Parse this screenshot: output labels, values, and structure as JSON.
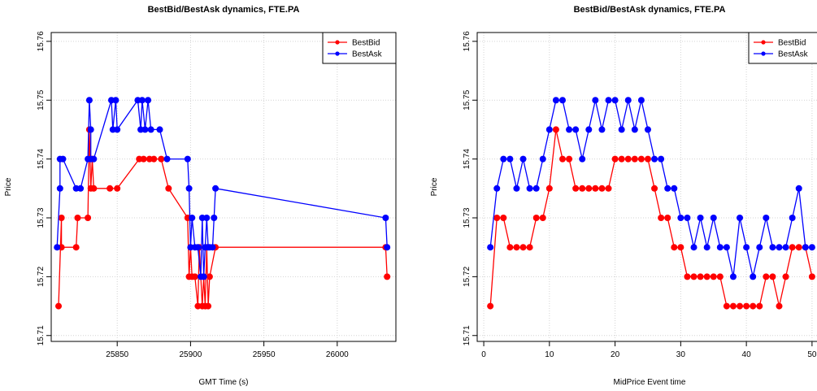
{
  "chart_data": [
    {
      "type": "line",
      "title": "BestBid/BestAsk dynamics, FTE.PA",
      "xlabel": "GMT Time (s)",
      "ylabel": "Price",
      "xlim": [
        25805,
        26040
      ],
      "ylim": [
        15.709,
        15.7615
      ],
      "xticks": [
        25850,
        25900,
        25950,
        26000
      ],
      "yticks": [
        15.71,
        15.72,
        15.73,
        15.74,
        15.75,
        15.76
      ],
      "xtick_labels": [
        "25850",
        "25900",
        "25950",
        "26000"
      ],
      "ytick_labels": [
        "15.71",
        "15.72",
        "15.73",
        "15.74",
        "15.75",
        "15.76"
      ],
      "grid": true,
      "legend_position": "top-right",
      "series": [
        {
          "name": "BestBid",
          "color": "#ff0000",
          "x": [
            25810,
            25812,
            25812,
            25822,
            25823,
            25830,
            25831,
            25832,
            25833,
            25834,
            25845,
            25850,
            25865,
            25868,
            25872,
            25875,
            25880,
            25885,
            25898,
            25899,
            25900,
            25901,
            25903,
            25905,
            25906,
            25908,
            25909,
            25910,
            25911,
            25912,
            25913,
            25917,
            26033,
            26034
          ],
          "y": [
            15.715,
            15.73,
            15.725,
            15.725,
            15.73,
            15.73,
            15.745,
            15.735,
            15.74,
            15.735,
            15.735,
            15.735,
            15.74,
            15.74,
            15.74,
            15.74,
            15.74,
            15.735,
            15.73,
            15.72,
            15.725,
            15.72,
            15.72,
            15.715,
            15.725,
            15.715,
            15.72,
            15.715,
            15.725,
            15.715,
            15.72,
            15.725,
            15.725,
            15.72
          ]
        },
        {
          "name": "BestAsk",
          "color": "#0000ff",
          "x": [
            25809,
            25811,
            25811,
            25813,
            25822,
            25825,
            25830,
            25831,
            25832,
            25832,
            25834,
            25846,
            25847,
            25849,
            25850,
            25864,
            25866,
            25867,
            25869,
            25871,
            25873,
            25879,
            25884,
            25898,
            25899,
            25900,
            25901,
            25903,
            25905,
            25907,
            25908,
            25909,
            25910,
            25911,
            25912,
            25913,
            25915,
            25916,
            25917,
            26033,
            26034
          ],
          "y": [
            15.725,
            15.735,
            15.74,
            15.74,
            15.735,
            15.735,
            15.74,
            15.75,
            15.745,
            15.74,
            15.74,
            15.75,
            15.745,
            15.75,
            15.745,
            15.75,
            15.745,
            15.75,
            15.745,
            15.75,
            15.745,
            15.745,
            15.74,
            15.74,
            15.735,
            15.725,
            15.73,
            15.725,
            15.725,
            15.72,
            15.73,
            15.72,
            15.725,
            15.73,
            15.725,
            15.725,
            15.725,
            15.73,
            15.735,
            15.73,
            15.725
          ]
        }
      ]
    },
    {
      "type": "line",
      "title": "BestBid/BestAsk dynamics, FTE.PA",
      "xlabel": "MidPrice Event time",
      "ylabel": "Price",
      "xlim": [
        -1,
        51.5
      ],
      "ylim": [
        15.709,
        15.7615
      ],
      "xticks": [
        0,
        10,
        20,
        30,
        40,
        50
      ],
      "yticks": [
        15.71,
        15.72,
        15.73,
        15.74,
        15.75,
        15.76
      ],
      "xtick_labels": [
        "0",
        "10",
        "20",
        "30",
        "40",
        "50"
      ],
      "ytick_labels": [
        "15.71",
        "15.72",
        "15.73",
        "15.74",
        "15.75",
        "15.76"
      ],
      "grid": true,
      "legend_position": "top-right",
      "series": [
        {
          "name": "BestBid",
          "color": "#ff0000",
          "x": [
            1,
            2,
            3,
            4,
            5,
            6,
            7,
            8,
            9,
            10,
            11,
            12,
            13,
            14,
            15,
            16,
            17,
            18,
            19,
            20,
            21,
            22,
            23,
            24,
            25,
            26,
            27,
            28,
            29,
            30,
            31,
            32,
            33,
            34,
            35,
            36,
            37,
            38,
            39,
            40,
            41,
            42,
            43,
            44,
            45,
            46,
            47,
            48,
            49,
            50
          ],
          "y": [
            15.715,
            15.73,
            15.73,
            15.725,
            15.725,
            15.725,
            15.725,
            15.73,
            15.73,
            15.735,
            15.745,
            15.74,
            15.74,
            15.735,
            15.735,
            15.735,
            15.735,
            15.735,
            15.735,
            15.74,
            15.74,
            15.74,
            15.74,
            15.74,
            15.74,
            15.735,
            15.73,
            15.73,
            15.725,
            15.725,
            15.72,
            15.72,
            15.72,
            15.72,
            15.72,
            15.72,
            15.715,
            15.715,
            15.715,
            15.715,
            15.715,
            15.715,
            15.72,
            15.72,
            15.715,
            15.72,
            15.725,
            15.725,
            15.725,
            15.72
          ]
        },
        {
          "name": "BestAsk",
          "color": "#0000ff",
          "x": [
            1,
            2,
            3,
            4,
            5,
            6,
            7,
            8,
            9,
            10,
            11,
            12,
            13,
            14,
            15,
            16,
            17,
            18,
            19,
            20,
            21,
            22,
            23,
            24,
            25,
            26,
            27,
            28,
            29,
            30,
            31,
            32,
            33,
            34,
            35,
            36,
            37,
            38,
            39,
            40,
            41,
            42,
            43,
            44,
            45,
            46,
            47,
            48,
            49,
            50
          ],
          "y": [
            15.725,
            15.735,
            15.74,
            15.74,
            15.735,
            15.74,
            15.735,
            15.735,
            15.74,
            15.745,
            15.75,
            15.75,
            15.745,
            15.745,
            15.74,
            15.745,
            15.75,
            15.745,
            15.75,
            15.75,
            15.745,
            15.75,
            15.745,
            15.75,
            15.745,
            15.74,
            15.74,
            15.735,
            15.735,
            15.73,
            15.73,
            15.725,
            15.73,
            15.725,
            15.73,
            15.725,
            15.725,
            15.72,
            15.73,
            15.725,
            15.72,
            15.725,
            15.73,
            15.725,
            15.725,
            15.725,
            15.73,
            15.735,
            15.725,
            15.725
          ]
        }
      ]
    }
  ]
}
